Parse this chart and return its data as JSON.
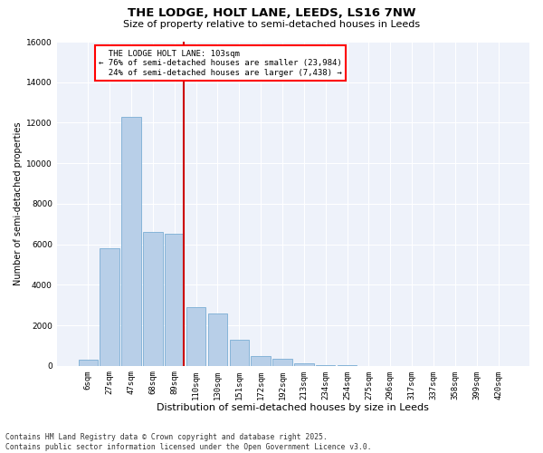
{
  "title_line1": "THE LODGE, HOLT LANE, LEEDS, LS16 7NW",
  "title_line2": "Size of property relative to semi-detached houses in Leeds",
  "xlabel": "Distribution of semi-detached houses by size in Leeds",
  "ylabel": "Number of semi-detached properties",
  "categories": [
    "6sqm",
    "27sqm",
    "47sqm",
    "68sqm",
    "89sqm",
    "110sqm",
    "130sqm",
    "151sqm",
    "172sqm",
    "192sqm",
    "213sqm",
    "234sqm",
    "254sqm",
    "275sqm",
    "296sqm",
    "317sqm",
    "337sqm",
    "358sqm",
    "399sqm",
    "420sqm"
  ],
  "values": [
    300,
    5800,
    12300,
    6600,
    6500,
    2900,
    2600,
    1300,
    500,
    330,
    130,
    50,
    20,
    8,
    4,
    2,
    1,
    1,
    0,
    0
  ],
  "bar_color": "#b8cfe8",
  "bar_edge_color": "#7aadd4",
  "vline_color": "#cc0000",
  "vline_pos": 4.42,
  "property_name": "THE LODGE HOLT LANE: 103sqm",
  "pct_smaller": "76% of semi-detached houses are smaller (23,984)",
  "pct_larger": "24% of semi-detached houses are larger (7,438)",
  "arrow_left": "←",
  "arrow_right": "→",
  "ylim": [
    0,
    16000
  ],
  "yticks": [
    0,
    2000,
    4000,
    6000,
    8000,
    10000,
    12000,
    14000,
    16000
  ],
  "footer_line1": "Contains HM Land Registry data © Crown copyright and database right 2025.",
  "footer_line2": "Contains public sector information licensed under the Open Government Licence v3.0.",
  "bg_color": "#ffffff",
  "plot_bg_color": "#eef2fa",
  "grid_color": "#ffffff",
  "title_fontsize": 9.5,
  "subtitle_fontsize": 8,
  "ylabel_fontsize": 7,
  "xlabel_fontsize": 8,
  "tick_fontsize": 6.5,
  "footer_fontsize": 5.8
}
